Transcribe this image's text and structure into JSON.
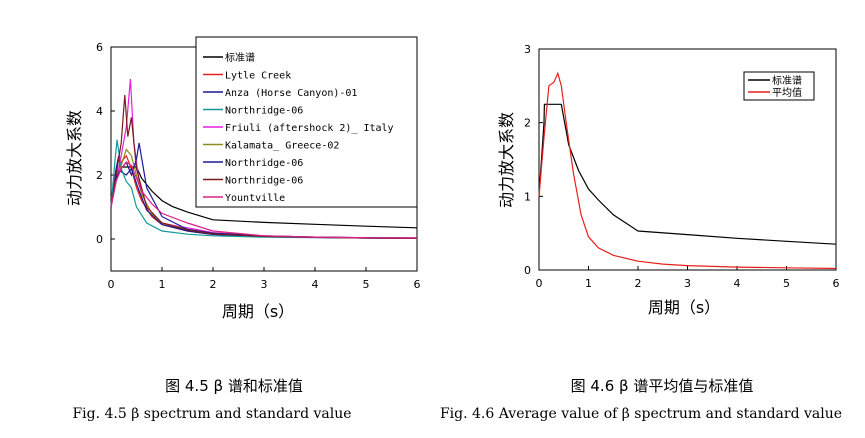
{
  "captions": {
    "left_cn": "图 4.5  β 谱和标准值",
    "left_en": "Fig. 4.5 β spectrum and standard value",
    "right_cn": "图 4.6  β 谱平均值与标准值",
    "right_en": "Fig. 4.6 Average value of β spectrum and standard value"
  },
  "chart_data": [
    {
      "type": "line",
      "title": "",
      "xlabel": "周期（s）",
      "ylabel": "动力放大系数",
      "xlim": [
        0,
        6
      ],
      "ylim": [
        -1,
        6
      ],
      "xticks": [
        0,
        1,
        2,
        3,
        4,
        5,
        6
      ],
      "yticks": [
        0,
        2,
        4,
        6
      ],
      "legend_position": "top-right",
      "series": [
        {
          "name": "标准谱",
          "color": "#000000",
          "x": [
            0,
            0.1,
            0.2,
            0.35,
            0.5,
            0.6,
            0.8,
            1.0,
            1.2,
            1.5,
            2.0,
            3.0,
            4.0,
            5.0,
            6.0
          ],
          "y": [
            1.0,
            1.9,
            2.25,
            2.25,
            2.25,
            1.9,
            1.5,
            1.2,
            1.02,
            0.84,
            0.6,
            0.52,
            0.46,
            0.4,
            0.35
          ]
        },
        {
          "name": "Lytle Creek",
          "color": "#e8201c",
          "x": [
            0,
            0.1,
            0.2,
            0.3,
            0.4,
            0.5,
            0.6,
            0.8,
            1.0,
            1.5,
            2.0,
            3.0,
            4.0,
            5.0,
            6.0
          ],
          "y": [
            1.0,
            2.0,
            2.4,
            2.6,
            2.2,
            1.6,
            1.2,
            0.7,
            0.45,
            0.25,
            0.15,
            0.08,
            0.05,
            0.03,
            0.02
          ]
        },
        {
          "name": "Anza (Horse Canyon)-01",
          "color": "#1a1a8c",
          "x": [
            0,
            0.1,
            0.15,
            0.2,
            0.3,
            0.4,
            0.55,
            0.7,
            1.0,
            1.5,
            2.0,
            3.0,
            4.0,
            5.0,
            6.0
          ],
          "y": [
            1.0,
            2.2,
            2.6,
            2.1,
            2.0,
            2.2,
            1.5,
            0.9,
            0.45,
            0.25,
            0.14,
            0.07,
            0.05,
            0.03,
            0.02
          ]
        },
        {
          "name": "Northridge-06",
          "color": "#139999",
          "x": [
            0,
            0.08,
            0.12,
            0.2,
            0.3,
            0.4,
            0.5,
            0.7,
            1.0,
            1.5,
            2.0,
            3.0,
            4.0,
            5.0,
            6.0
          ],
          "y": [
            1.0,
            2.5,
            3.1,
            2.2,
            1.8,
            1.6,
            1.0,
            0.5,
            0.25,
            0.15,
            0.1,
            0.06,
            0.04,
            0.03,
            0.02
          ]
        },
        {
          "name": "Friuli (aftershock 2)_ Italy",
          "color": "#e81ee0",
          "x": [
            0,
            0.1,
            0.2,
            0.3,
            0.38,
            0.45,
            0.55,
            0.7,
            1.0,
            1.3,
            1.5,
            2.0,
            3.0,
            4.0,
            5.0,
            6.0
          ],
          "y": [
            1.0,
            1.8,
            2.6,
            3.5,
            5.0,
            3.0,
            1.8,
            1.0,
            0.5,
            0.4,
            0.35,
            0.2,
            0.1,
            0.06,
            0.04,
            0.03
          ]
        },
        {
          "name": "Kalamata_ Greece-02",
          "color": "#8c8c1a",
          "x": [
            0,
            0.1,
            0.2,
            0.3,
            0.4,
            0.5,
            0.6,
            0.8,
            1.0,
            1.5,
            2.0,
            3.0,
            4.0,
            5.0,
            6.0
          ],
          "y": [
            1.0,
            1.8,
            2.3,
            2.8,
            2.6,
            2.0,
            1.4,
            0.8,
            0.5,
            0.3,
            0.18,
            0.1,
            0.06,
            0.04,
            0.03
          ]
        },
        {
          "name": "Northridge-06",
          "color": "#1a1a99",
          "x": [
            0,
            0.1,
            0.2,
            0.3,
            0.4,
            0.5,
            0.55,
            0.7,
            1.0,
            1.5,
            2.0,
            3.0,
            4.0,
            5.0,
            6.0
          ],
          "y": [
            1.0,
            1.9,
            2.2,
            2.4,
            2.0,
            2.5,
            3.0,
            1.6,
            0.7,
            0.3,
            0.18,
            0.1,
            0.06,
            0.04,
            0.03
          ]
        },
        {
          "name": "Northridge-06",
          "color": "#7a1a1a",
          "x": [
            0,
            0.1,
            0.2,
            0.27,
            0.33,
            0.4,
            0.5,
            0.7,
            1.0,
            1.5,
            2.0,
            3.0,
            4.0,
            5.0,
            6.0
          ],
          "y": [
            1.0,
            2.0,
            3.0,
            4.5,
            3.2,
            3.8,
            2.2,
            1.0,
            0.5,
            0.28,
            0.16,
            0.08,
            0.05,
            0.03,
            0.02
          ]
        },
        {
          "name": "Yountville",
          "color": "#e01e8c",
          "x": [
            0,
            0.1,
            0.2,
            0.3,
            0.4,
            0.5,
            0.6,
            0.8,
            1.0,
            1.5,
            2.0,
            3.0,
            4.0,
            5.0,
            6.0
          ],
          "y": [
            1.0,
            1.8,
            2.2,
            2.4,
            2.3,
            1.9,
            1.5,
            1.1,
            0.8,
            0.5,
            0.25,
            0.1,
            0.06,
            0.04,
            0.03
          ]
        }
      ]
    },
    {
      "type": "line",
      "title": "",
      "xlabel": "周期（s）",
      "ylabel": "动力放大系数",
      "xlim": [
        0,
        6
      ],
      "ylim": [
        0,
        3
      ],
      "xticks": [
        0,
        1,
        2,
        3,
        4,
        5,
        6
      ],
      "yticks": [
        0,
        1,
        2,
        3
      ],
      "legend_position": "top-right",
      "series": [
        {
          "name": "标准谱",
          "color": "#000000",
          "x": [
            0,
            0.1,
            0.11,
            0.35,
            0.45,
            0.6,
            0.8,
            1.0,
            1.2,
            1.5,
            2.0,
            3.0,
            4.0,
            5.0,
            6.0
          ],
          "y": [
            1.0,
            2.0,
            2.25,
            2.25,
            2.25,
            1.7,
            1.35,
            1.1,
            0.95,
            0.75,
            0.53,
            0.48,
            0.43,
            0.39,
            0.35
          ]
        },
        {
          "name": "平均值",
          "color": "#e8201c",
          "x": [
            0,
            0.1,
            0.2,
            0.3,
            0.38,
            0.45,
            0.55,
            0.7,
            0.85,
            1.0,
            1.2,
            1.5,
            2.0,
            2.5,
            3.0,
            4.0,
            5.0,
            6.0
          ],
          "y": [
            1.0,
            1.8,
            2.5,
            2.55,
            2.67,
            2.5,
            2.0,
            1.3,
            0.75,
            0.45,
            0.3,
            0.2,
            0.12,
            0.08,
            0.06,
            0.04,
            0.03,
            0.02
          ]
        }
      ]
    }
  ]
}
